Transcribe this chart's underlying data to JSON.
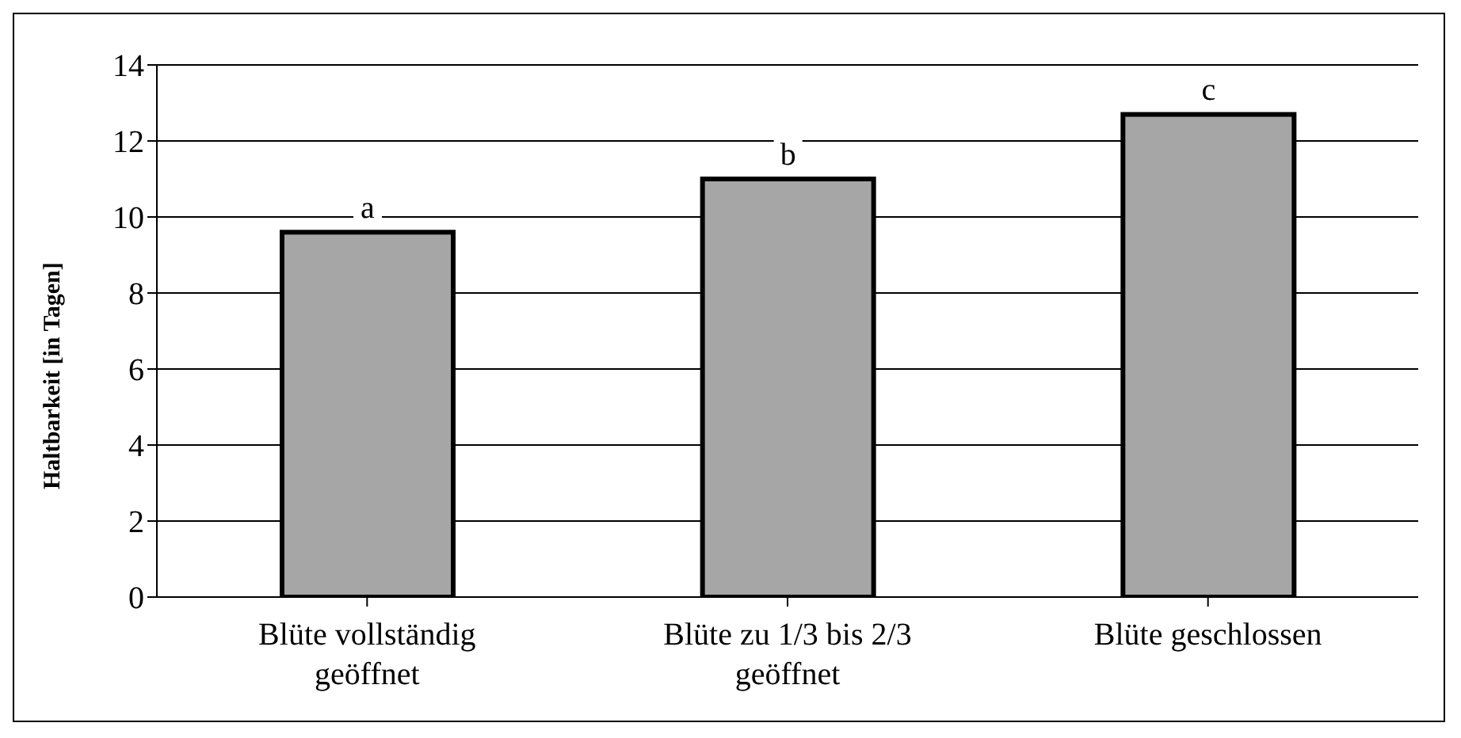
{
  "chart_data": {
    "type": "bar",
    "ylabel": "Haltbarkeit [in Tagen]",
    "categories": [
      "Blüte vollständig geöffnet",
      "Blüte zu 1/3 bis 2/3 geöffnet",
      "Blüte geschlossen"
    ],
    "values": [
      9.6,
      11.0,
      12.7
    ],
    "color": "#a6a6a6",
    "ylim": [
      0,
      14
    ],
    "yticks": [
      0,
      2,
      4,
      6,
      8,
      10,
      12,
      14
    ],
    "grid": "y",
    "annotations": [
      "a",
      "b",
      "c"
    ]
  }
}
